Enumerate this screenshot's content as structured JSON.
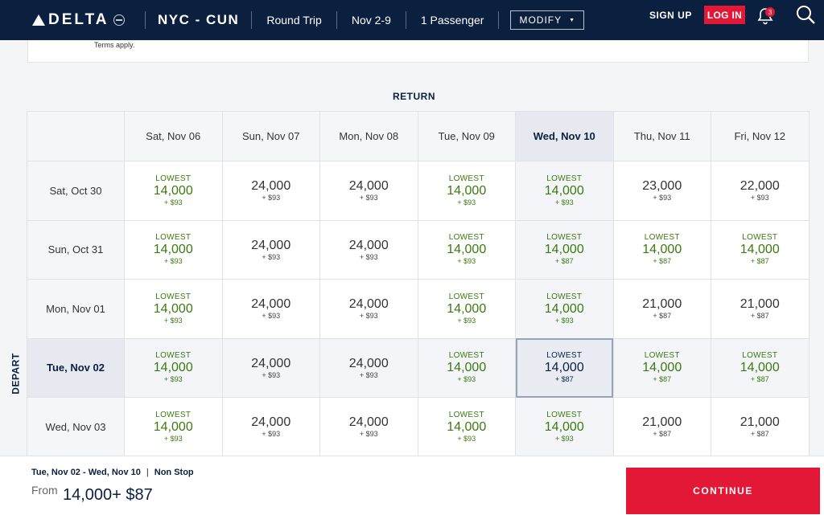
{
  "header": {
    "logo_text": "DELTA",
    "route": "NYC - CUN",
    "trip_type": "Round Trip",
    "dates": "Nov 2-9",
    "passengers": "1 Passenger",
    "modify_label": "MODIFY",
    "signup_label": "SIGN UP",
    "login_label": "LOG IN",
    "notification_count": "3",
    "colors": {
      "navy": "#0b1f3f",
      "red": "#e21836",
      "green": "#3b7a0e"
    }
  },
  "terms": {
    "text": "Terms apply."
  },
  "grid": {
    "return_label": "RETURN",
    "depart_label": "DEPART",
    "selected_return_index": 4,
    "selected_depart_index": 3,
    "return_dates": [
      "Sat, Nov 06",
      "Sun, Nov 07",
      "Mon, Nov 08",
      "Tue, Nov 09",
      "Wed, Nov 10",
      "Thu, Nov 11",
      "Fri, Nov 12"
    ],
    "rows": [
      {
        "depart": "Sat, Oct 30",
        "cells": [
          {
            "lowest": "LOWEST",
            "miles": "14,000",
            "tax": "+ $93"
          },
          {
            "lowest": "",
            "miles": "24,000",
            "tax": "+ $93"
          },
          {
            "lowest": "",
            "miles": "24,000",
            "tax": "+ $93"
          },
          {
            "lowest": "LOWEST",
            "miles": "14,000",
            "tax": "+ $93"
          },
          {
            "lowest": "LOWEST",
            "miles": "14,000",
            "tax": "+ $93"
          },
          {
            "lowest": "",
            "miles": "23,000",
            "tax": "+ $93"
          },
          {
            "lowest": "",
            "miles": "22,000",
            "tax": "+ $93"
          }
        ]
      },
      {
        "depart": "Sun, Oct 31",
        "cells": [
          {
            "lowest": "LOWEST",
            "miles": "14,000",
            "tax": "+ $93"
          },
          {
            "lowest": "",
            "miles": "24,000",
            "tax": "+ $93"
          },
          {
            "lowest": "",
            "miles": "24,000",
            "tax": "+ $93"
          },
          {
            "lowest": "LOWEST",
            "miles": "14,000",
            "tax": "+ $93"
          },
          {
            "lowest": "LOWEST",
            "miles": "14,000",
            "tax": "+ $87"
          },
          {
            "lowest": "LOWEST",
            "miles": "14,000",
            "tax": "+ $87"
          },
          {
            "lowest": "LOWEST",
            "miles": "14,000",
            "tax": "+ $87"
          }
        ]
      },
      {
        "depart": "Mon, Nov 01",
        "cells": [
          {
            "lowest": "LOWEST",
            "miles": "14,000",
            "tax": "+ $93"
          },
          {
            "lowest": "",
            "miles": "24,000",
            "tax": "+ $93"
          },
          {
            "lowest": "",
            "miles": "24,000",
            "tax": "+ $93"
          },
          {
            "lowest": "LOWEST",
            "miles": "14,000",
            "tax": "+ $93"
          },
          {
            "lowest": "LOWEST",
            "miles": "14,000",
            "tax": "+ $93"
          },
          {
            "lowest": "",
            "miles": "21,000",
            "tax": "+ $87"
          },
          {
            "lowest": "",
            "miles": "21,000",
            "tax": "+ $87"
          }
        ]
      },
      {
        "depart": "Tue, Nov 02",
        "cells": [
          {
            "lowest": "LOWEST",
            "miles": "14,000",
            "tax": "+ $93"
          },
          {
            "lowest": "",
            "miles": "24,000",
            "tax": "+ $93"
          },
          {
            "lowest": "",
            "miles": "24,000",
            "tax": "+ $93"
          },
          {
            "lowest": "LOWEST",
            "miles": "14,000",
            "tax": "+ $93"
          },
          {
            "lowest": "LOWEST",
            "miles": "14,000",
            "tax": "+ $87"
          },
          {
            "lowest": "LOWEST",
            "miles": "14,000",
            "tax": "+ $87"
          },
          {
            "lowest": "LOWEST",
            "miles": "14,000",
            "tax": "+ $87"
          }
        ]
      },
      {
        "depart": "Wed, Nov 03",
        "cells": [
          {
            "lowest": "LOWEST",
            "miles": "14,000",
            "tax": "+ $93"
          },
          {
            "lowest": "",
            "miles": "24,000",
            "tax": "+ $93"
          },
          {
            "lowest": "",
            "miles": "24,000",
            "tax": "+ $93"
          },
          {
            "lowest": "LOWEST",
            "miles": "14,000",
            "tax": "+ $93"
          },
          {
            "lowest": "LOWEST",
            "miles": "14,000",
            "tax": "+ $93"
          },
          {
            "lowest": "",
            "miles": "21,000",
            "tax": "+ $87"
          },
          {
            "lowest": "",
            "miles": "21,000",
            "tax": "+ $87"
          }
        ]
      }
    ]
  },
  "footer": {
    "summary_dates": "Tue, Nov 02  - Wed, Nov 10",
    "summary_sep": "|",
    "summary_stops": "Non Stop",
    "from_label": "From",
    "price": "14,000+ $87",
    "continue_label": "CONTINUE"
  }
}
